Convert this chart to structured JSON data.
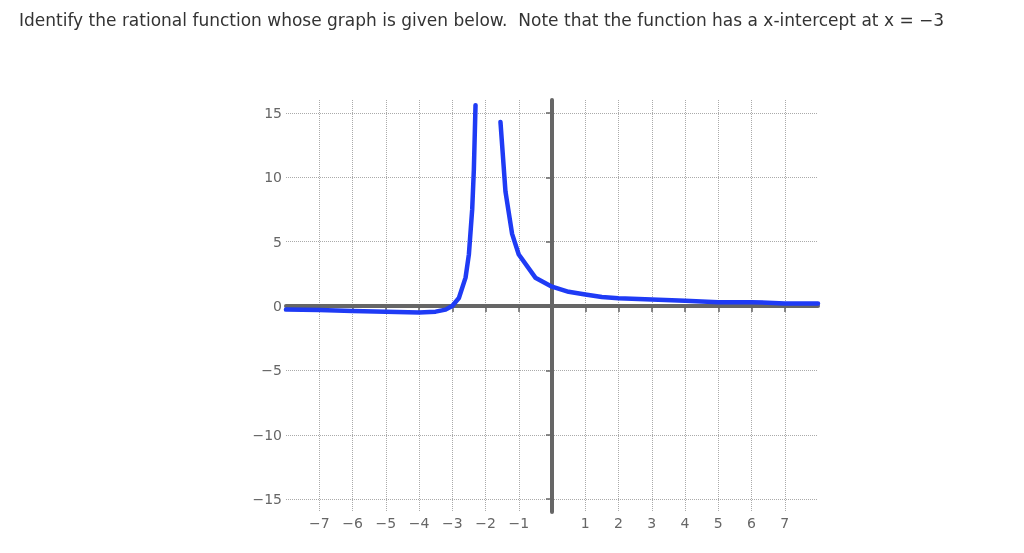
{
  "chart_data": {
    "type": "line",
    "title": "Identify the rational function whose graph is given below.  Note that the function has a x-intercept at x = −3",
    "series": [
      {
        "color": "#1f3bf5",
        "x": [
          -8,
          -7,
          -6,
          -5,
          -4,
          -3.5,
          -3.2,
          -3,
          -2.8,
          -2.6,
          -2.5,
          -2.4,
          -2.35,
          -2.3,
          -2,
          -1.55,
          -1.4,
          -1.2,
          -1,
          -0.5,
          0,
          0.5,
          1,
          1.5,
          2,
          3,
          4,
          5,
          6,
          7,
          8
        ],
        "values": [
          -0.28,
          -0.32,
          -0.38,
          -0.44,
          -0.5,
          -0.44,
          -0.28,
          0,
          0.62,
          2.2,
          4,
          7.5,
          10.6,
          15.6,
          null,
          14.3,
          8.9,
          5.6,
          4,
          2.2,
          1.5,
          1.1,
          0.9,
          0.7,
          0.6,
          0.5,
          0.4,
          0.3,
          0.3,
          0.2,
          0.2
        ]
      }
    ],
    "xlim": [
      -8,
      8
    ],
    "ylim": [
      -16,
      16
    ],
    "xticks": [
      -7,
      -6,
      -5,
      -4,
      -3,
      -2,
      -1,
      1,
      2,
      3,
      4,
      5,
      6,
      7
    ],
    "yticks": [
      -15,
      -10,
      -5,
      0,
      5,
      10,
      15
    ],
    "grid": true,
    "marker": "none",
    "line_style": "solid"
  }
}
